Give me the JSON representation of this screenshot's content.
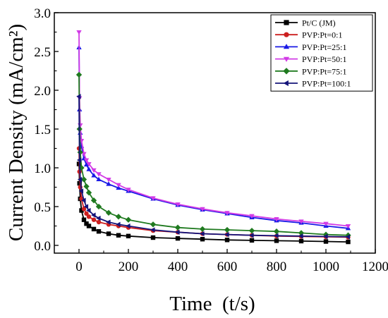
{
  "chart_data": {
    "type": "line",
    "title": "",
    "xlabel": "Time  (t/s)",
    "ylabel": "Current Density (mA/cm²)",
    "xlim": [
      -100,
      1200
    ],
    "ylim": [
      -0.1,
      3.0
    ],
    "xticks": [
      0,
      200,
      400,
      600,
      800,
      1000,
      1200
    ],
    "xtick_labels": [
      "0",
      "200",
      "400",
      "600",
      "800",
      "1000",
      "1200"
    ],
    "yticks": [
      0.0,
      0.5,
      1.0,
      1.5,
      2.0,
      2.5,
      3.0
    ],
    "ytick_labels": [
      "0.0",
      "0.5",
      "1.0",
      "1.5",
      "2.0",
      "2.5",
      "3.0"
    ],
    "grid": false,
    "legend_position": "top-right",
    "series": [
      {
        "name": "Pt/C (JM)",
        "color": "#000000",
        "marker": "square",
        "x": [
          0,
          2,
          5,
          10,
          20,
          30,
          40,
          60,
          80,
          120,
          160,
          200,
          300,
          400,
          500,
          600,
          700,
          800,
          900,
          1000,
          1090
        ],
        "y": [
          1.05,
          0.8,
          0.6,
          0.45,
          0.33,
          0.28,
          0.25,
          0.21,
          0.18,
          0.15,
          0.13,
          0.12,
          0.1,
          0.09,
          0.08,
          0.07,
          0.065,
          0.06,
          0.055,
          0.05,
          0.045
        ]
      },
      {
        "name": "PVP:Pt=0:1",
        "color": "#cc1f1f",
        "marker": "circle",
        "x": [
          0,
          2,
          5,
          10,
          20,
          30,
          40,
          60,
          80,
          120,
          160,
          200,
          300,
          400,
          500,
          600,
          700,
          800,
          900,
          1000,
          1090
        ],
        "y": [
          1.25,
          0.95,
          0.75,
          0.6,
          0.47,
          0.41,
          0.37,
          0.33,
          0.3,
          0.27,
          0.25,
          0.23,
          0.19,
          0.17,
          0.15,
          0.14,
          0.13,
          0.12,
          0.115,
          0.11,
          0.105
        ]
      },
      {
        "name": "PVP:Pt=25:1",
        "color": "#1a1ae6",
        "marker": "triangle-up",
        "x": [
          0,
          2,
          5,
          10,
          20,
          30,
          40,
          60,
          80,
          120,
          160,
          200,
          300,
          400,
          500,
          600,
          700,
          800,
          900,
          1000,
          1090
        ],
        "y": [
          2.55,
          1.75,
          1.45,
          1.28,
          1.12,
          1.04,
          0.98,
          0.9,
          0.85,
          0.79,
          0.74,
          0.7,
          0.6,
          0.52,
          0.46,
          0.41,
          0.36,
          0.32,
          0.29,
          0.25,
          0.22
        ]
      },
      {
        "name": "PVP:Pt=50:1",
        "color": "#d23be6",
        "marker": "triangle-down",
        "x": [
          0,
          2,
          5,
          10,
          20,
          30,
          40,
          60,
          80,
          120,
          160,
          200,
          300,
          400,
          500,
          600,
          700,
          800,
          900,
          1000,
          1090
        ],
        "y": [
          2.75,
          1.9,
          1.55,
          1.35,
          1.18,
          1.1,
          1.05,
          0.97,
          0.92,
          0.85,
          0.78,
          0.72,
          0.61,
          0.53,
          0.47,
          0.42,
          0.38,
          0.34,
          0.31,
          0.28,
          0.25
        ]
      },
      {
        "name": "PVP:Pt=75:1",
        "color": "#1f7a1f",
        "marker": "diamond",
        "x": [
          0,
          2,
          5,
          10,
          20,
          30,
          40,
          60,
          80,
          120,
          160,
          200,
          300,
          400,
          500,
          600,
          700,
          800,
          900,
          1000,
          1090
        ],
        "y": [
          2.2,
          1.5,
          1.2,
          1.0,
          0.85,
          0.76,
          0.68,
          0.58,
          0.5,
          0.42,
          0.37,
          0.33,
          0.27,
          0.23,
          0.21,
          0.2,
          0.19,
          0.18,
          0.16,
          0.14,
          0.13
        ]
      },
      {
        "name": "PVP:Pt=100:1",
        "color": "#14147a",
        "marker": "triangle-left",
        "x": [
          0,
          2,
          5,
          10,
          20,
          30,
          40,
          60,
          80,
          120,
          160,
          200,
          300,
          400,
          500,
          600,
          700,
          800,
          900,
          1000,
          1090
        ],
        "y": [
          1.92,
          1.1,
          0.85,
          0.7,
          0.58,
          0.5,
          0.45,
          0.39,
          0.35,
          0.3,
          0.27,
          0.25,
          0.2,
          0.17,
          0.15,
          0.14,
          0.13,
          0.125,
          0.12,
          0.115,
          0.11
        ]
      }
    ]
  }
}
